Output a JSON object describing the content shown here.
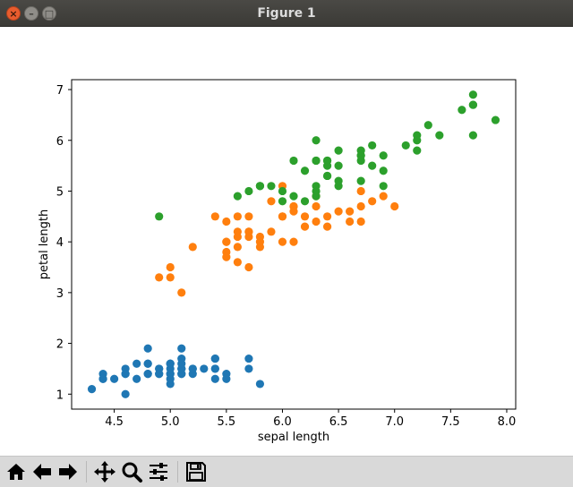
{
  "window": {
    "title": "Figure 1"
  },
  "toolbar": {
    "buttons": [
      {
        "name": "home-button",
        "icon": "home-icon"
      },
      {
        "name": "back-button",
        "icon": "arrow-left-icon"
      },
      {
        "name": "forward-button",
        "icon": "arrow-right-icon"
      },
      {
        "name": "pan-button",
        "icon": "move-icon"
      },
      {
        "name": "zoom-button",
        "icon": "magnifier-icon"
      },
      {
        "name": "configure-subplots-button",
        "icon": "sliders-icon"
      },
      {
        "name": "save-button",
        "icon": "floppy-disk-icon"
      }
    ]
  },
  "chart_data": {
    "type": "scatter",
    "title": "",
    "xlabel": "sepal length",
    "ylabel": "petal length",
    "xlim": [
      4.12,
      8.08
    ],
    "ylim": [
      0.705,
      7.195
    ],
    "xticks": [
      4.5,
      5.0,
      5.5,
      6.0,
      6.5,
      7.0,
      7.5,
      8.0
    ],
    "xtick_labels": [
      "4.5",
      "5.0",
      "5.5",
      "6.0",
      "6.5",
      "7.0",
      "7.5",
      "8.0"
    ],
    "yticks": [
      1,
      2,
      3,
      4,
      5,
      6,
      7
    ],
    "ytick_labels": [
      "1",
      "2",
      "3",
      "4",
      "5",
      "6",
      "7"
    ],
    "grid": false,
    "legend": false,
    "series": [
      {
        "color": "#1f77b4",
        "points": [
          [
            5.1,
            1.4
          ],
          [
            4.9,
            1.4
          ],
          [
            4.7,
            1.3
          ],
          [
            4.6,
            1.5
          ],
          [
            5.0,
            1.4
          ],
          [
            5.4,
            1.7
          ],
          [
            4.6,
            1.4
          ],
          [
            5.0,
            1.5
          ],
          [
            4.4,
            1.4
          ],
          [
            4.9,
            1.5
          ],
          [
            5.4,
            1.5
          ],
          [
            4.8,
            1.6
          ],
          [
            4.8,
            1.4
          ],
          [
            4.3,
            1.1
          ],
          [
            5.8,
            1.2
          ],
          [
            5.7,
            1.5
          ],
          [
            5.4,
            1.3
          ],
          [
            5.1,
            1.4
          ],
          [
            5.7,
            1.7
          ],
          [
            5.1,
            1.5
          ],
          [
            5.4,
            1.7
          ],
          [
            5.1,
            1.5
          ],
          [
            4.6,
            1.0
          ],
          [
            5.1,
            1.7
          ],
          [
            4.8,
            1.9
          ],
          [
            5.0,
            1.6
          ],
          [
            5.0,
            1.6
          ],
          [
            5.2,
            1.5
          ],
          [
            5.2,
            1.4
          ],
          [
            4.7,
            1.6
          ],
          [
            4.8,
            1.6
          ],
          [
            5.4,
            1.5
          ],
          [
            5.2,
            1.5
          ],
          [
            5.5,
            1.4
          ],
          [
            4.9,
            1.5
          ],
          [
            5.0,
            1.2
          ],
          [
            5.5,
            1.3
          ],
          [
            4.9,
            1.4
          ],
          [
            4.4,
            1.3
          ],
          [
            5.1,
            1.5
          ],
          [
            5.0,
            1.3
          ],
          [
            4.5,
            1.3
          ],
          [
            4.4,
            1.3
          ],
          [
            5.0,
            1.6
          ],
          [
            5.1,
            1.9
          ],
          [
            4.8,
            1.4
          ],
          [
            5.1,
            1.6
          ],
          [
            4.6,
            1.4
          ],
          [
            5.3,
            1.5
          ],
          [
            5.0,
            1.4
          ]
        ]
      },
      {
        "color": "#ff7f0e",
        "points": [
          [
            7.0,
            4.7
          ],
          [
            6.4,
            4.5
          ],
          [
            6.9,
            4.9
          ],
          [
            5.5,
            4.0
          ],
          [
            6.5,
            4.6
          ],
          [
            5.7,
            4.5
          ],
          [
            6.3,
            4.7
          ],
          [
            4.9,
            3.3
          ],
          [
            6.6,
            4.6
          ],
          [
            5.2,
            3.9
          ],
          [
            5.0,
            3.5
          ],
          [
            5.9,
            4.2
          ],
          [
            6.0,
            4.0
          ],
          [
            6.1,
            4.7
          ],
          [
            5.6,
            3.6
          ],
          [
            6.7,
            4.4
          ],
          [
            5.6,
            4.5
          ],
          [
            5.8,
            4.1
          ],
          [
            6.2,
            4.5
          ],
          [
            5.6,
            3.9
          ],
          [
            5.9,
            4.8
          ],
          [
            6.1,
            4.0
          ],
          [
            6.3,
            4.9
          ],
          [
            6.1,
            4.7
          ],
          [
            6.4,
            4.3
          ],
          [
            6.6,
            4.4
          ],
          [
            6.8,
            4.8
          ],
          [
            6.7,
            5.0
          ],
          [
            6.0,
            4.5
          ],
          [
            5.7,
            3.5
          ],
          [
            5.5,
            3.8
          ],
          [
            5.5,
            3.7
          ],
          [
            5.8,
            3.9
          ],
          [
            6.0,
            5.1
          ],
          [
            5.4,
            4.5
          ],
          [
            6.0,
            4.5
          ],
          [
            6.7,
            4.7
          ],
          [
            6.3,
            4.4
          ],
          [
            5.6,
            4.1
          ],
          [
            5.5,
            4.0
          ],
          [
            5.5,
            4.4
          ],
          [
            6.1,
            4.6
          ],
          [
            5.8,
            4.0
          ],
          [
            5.0,
            3.3
          ],
          [
            5.6,
            4.2
          ],
          [
            5.7,
            4.2
          ],
          [
            5.7,
            4.2
          ],
          [
            6.2,
            4.3
          ],
          [
            5.1,
            3.0
          ],
          [
            5.7,
            4.1
          ]
        ]
      },
      {
        "color": "#2ca02c",
        "points": [
          [
            6.3,
            6.0
          ],
          [
            5.8,
            5.1
          ],
          [
            7.1,
            5.9
          ],
          [
            6.3,
            5.6
          ],
          [
            6.5,
            5.8
          ],
          [
            7.6,
            6.6
          ],
          [
            4.9,
            4.5
          ],
          [
            7.3,
            6.3
          ],
          [
            6.7,
            5.8
          ],
          [
            7.2,
            6.1
          ],
          [
            6.5,
            5.1
          ],
          [
            6.4,
            5.3
          ],
          [
            6.8,
            5.5
          ],
          [
            5.7,
            5.0
          ],
          [
            5.8,
            5.1
          ],
          [
            6.4,
            5.3
          ],
          [
            6.5,
            5.5
          ],
          [
            7.7,
            6.7
          ],
          [
            7.7,
            6.9
          ],
          [
            6.0,
            5.0
          ],
          [
            6.9,
            5.7
          ],
          [
            5.6,
            4.9
          ],
          [
            7.7,
            6.7
          ],
          [
            6.3,
            4.9
          ],
          [
            6.7,
            5.7
          ],
          [
            7.2,
            6.0
          ],
          [
            6.2,
            4.8
          ],
          [
            6.1,
            4.9
          ],
          [
            6.4,
            5.6
          ],
          [
            7.2,
            5.8
          ],
          [
            7.4,
            6.1
          ],
          [
            7.9,
            6.4
          ],
          [
            6.4,
            5.6
          ],
          [
            6.3,
            5.1
          ],
          [
            6.1,
            5.6
          ],
          [
            7.7,
            6.1
          ],
          [
            6.3,
            5.6
          ],
          [
            6.4,
            5.5
          ],
          [
            6.0,
            4.8
          ],
          [
            6.9,
            5.4
          ],
          [
            6.7,
            5.6
          ],
          [
            6.9,
            5.1
          ],
          [
            5.8,
            5.1
          ],
          [
            6.8,
            5.9
          ],
          [
            6.7,
            5.7
          ],
          [
            6.7,
            5.2
          ],
          [
            6.3,
            5.0
          ],
          [
            6.5,
            5.2
          ],
          [
            6.2,
            5.4
          ],
          [
            5.9,
            5.1
          ]
        ]
      }
    ]
  }
}
